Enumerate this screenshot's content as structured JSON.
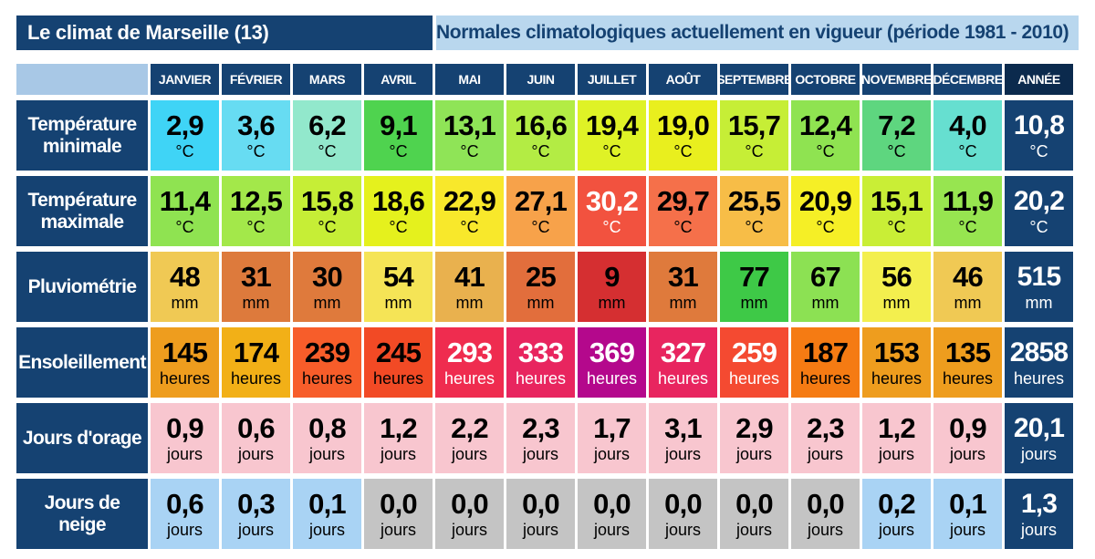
{
  "header": {
    "title": "Le climat de Marseille (13)",
    "subtitle": "Normales climatologiques actuellement en vigueur (période 1981 - 2010)"
  },
  "months": [
    "JANVIER",
    "FÉVRIER",
    "MARS",
    "AVRIL",
    "MAI",
    "JUIN",
    "JUILLET",
    "AOÛT",
    "SEPTEMBRE",
    "OCTOBRE",
    "NOVEMBRE",
    "DÉCEMBRE"
  ],
  "year_label": "ANNÉE",
  "rows": [
    {
      "label": "Température minimale",
      "unit": "°C",
      "values": [
        "2,9",
        "3,6",
        "6,2",
        "9,1",
        "13,1",
        "16,6",
        "19,4",
        "19,0",
        "15,7",
        "12,4",
        "7,2",
        "4,0"
      ],
      "colors": [
        "#3fd4f6",
        "#67dcf2",
        "#92e8cc",
        "#4fd34f",
        "#8fe457",
        "#b3ec44",
        "#dff226",
        "#e9ef1e",
        "#c6ee36",
        "#8fe351",
        "#5ed67f",
        "#66dfd0"
      ],
      "year": "10,8"
    },
    {
      "label": "Température maximale",
      "unit": "°C",
      "values": [
        "11,4",
        "12,5",
        "15,8",
        "18,6",
        "22,9",
        "27,1",
        "30,2",
        "29,7",
        "25,5",
        "20,9",
        "15,1",
        "11,9"
      ],
      "colors": [
        "#8fe351",
        "#a3e84a",
        "#c6ee36",
        "#e5f11d",
        "#f8e82b",
        "#f7a24a",
        "#f2523f",
        "#f5704a",
        "#f7bd47",
        "#f5ef26",
        "#c9ee36",
        "#97e550"
      ],
      "year": "20,2"
    },
    {
      "label": "Pluviométrie",
      "unit": "mm",
      "values": [
        "48",
        "31",
        "30",
        "54",
        "41",
        "25",
        "9",
        "31",
        "77",
        "67",
        "56",
        "46"
      ],
      "colors": [
        "#f0c954",
        "#dd7a3c",
        "#df7a3c",
        "#f5e456",
        "#e9b14e",
        "#e26e3c",
        "#d52f31",
        "#df7a3c",
        "#3ec947",
        "#8ce153",
        "#f3ef4e",
        "#f0c954"
      ],
      "year": "515"
    },
    {
      "label": "Ensoleillement",
      "unit": "heures",
      "values": [
        "145",
        "174",
        "239",
        "245",
        "293",
        "333",
        "369",
        "327",
        "259",
        "187",
        "153",
        "135"
      ],
      "colors": [
        "#ee9d1e",
        "#f2b017",
        "#f75d2a",
        "#f24a25",
        "#ef2c4f",
        "#e8255f",
        "#b4088c",
        "#e8255f",
        "#f44a31",
        "#f57b13",
        "#ee9d1e",
        "#ee9d1e"
      ],
      "year": "2858"
    },
    {
      "label": "Jours d'orage",
      "unit": "jours",
      "values": [
        "0,9",
        "0,6",
        "0,8",
        "1,2",
        "2,2",
        "2,3",
        "1,7",
        "3,1",
        "2,9",
        "2,3",
        "1,2",
        "0,9"
      ],
      "colors": [
        "#f8c6cf",
        "#f8c6cf",
        "#f8c6cf",
        "#f8c6cf",
        "#f8c6cf",
        "#f8c6cf",
        "#f8c6cf",
        "#f8c6cf",
        "#f8c6cf",
        "#f8c6cf",
        "#f8c6cf",
        "#f8c6cf"
      ],
      "year": "20,1"
    },
    {
      "label": "Jours de neige",
      "unit": "jours",
      "values": [
        "0,6",
        "0,3",
        "0,1",
        "0,0",
        "0,0",
        "0,0",
        "0,0",
        "0,0",
        "0,0",
        "0,0",
        "0,2",
        "0,1"
      ],
      "colors": [
        "#a9d3f4",
        "#a9d3f4",
        "#a9d3f4",
        "#c4c4c4",
        "#c4c4c4",
        "#c4c4c4",
        "#c4c4c4",
        "#c4c4c4",
        "#c4c4c4",
        "#c4c4c4",
        "#a9d3f4",
        "#a9d3f4"
      ],
      "year": "1,3"
    }
  ],
  "light_text_cells": [
    [
      1,
      6
    ],
    [
      3,
      4
    ],
    [
      3,
      5
    ],
    [
      3,
      6
    ],
    [
      3,
      7
    ],
    [
      3,
      8
    ]
  ]
}
